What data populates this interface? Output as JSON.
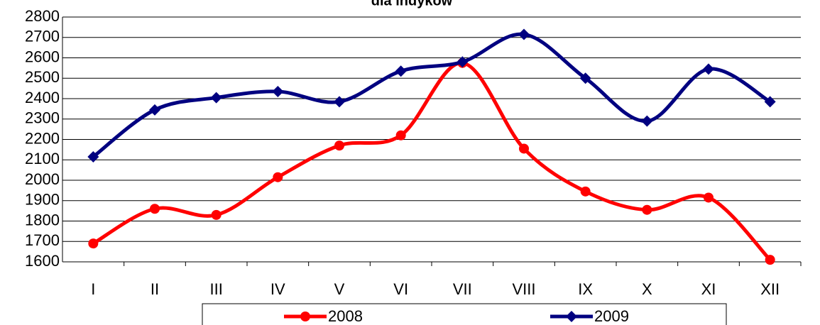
{
  "chart_data": {
    "type": "line",
    "title": "dla indyków",
    "categories": [
      "I",
      "II",
      "III",
      "IV",
      "V",
      "VI",
      "VII",
      "VIII",
      "IX",
      "X",
      "XI",
      "XII"
    ],
    "series": [
      {
        "name": "2008",
        "color": "#ff0000",
        "marker": "circle",
        "values": [
          1690,
          1860,
          1830,
          2015,
          2170,
          2220,
          2575,
          2155,
          1945,
          1855,
          1915,
          1610
        ]
      },
      {
        "name": "2009",
        "color": "#000080",
        "marker": "diamond",
        "values": [
          2115,
          2345,
          2405,
          2435,
          2385,
          2535,
          2580,
          2715,
          2500,
          2290,
          2545,
          2385
        ]
      }
    ],
    "ylim": [
      1600,
      2800
    ],
    "yticks": [
      1600,
      1700,
      1800,
      1900,
      2000,
      2100,
      2200,
      2300,
      2400,
      2500,
      2600,
      2700,
      2800
    ],
    "grid": true,
    "smooth": true,
    "legend": "bottom"
  }
}
